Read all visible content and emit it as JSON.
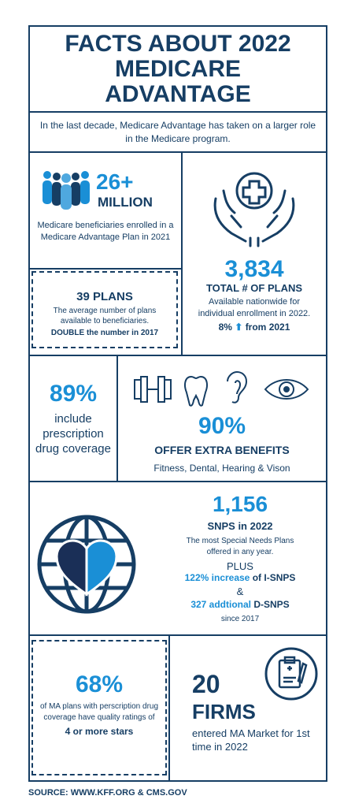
{
  "header": {
    "title_lines": [
      "FACTS ABOUT 2022",
      "MEDICARE",
      "ADVANTAGE"
    ]
  },
  "intro": "In the last decade, Medicare Advantage has taken on a larger role in the Medicare program.",
  "enrollment": {
    "value": "26+",
    "unit": "MILLION",
    "description": "Medicare beneficiaries enrolled in a Medicare Advantage Plan in 2021"
  },
  "average_plans": {
    "value": "39 PLANS",
    "description": "The average number of plans available to beneficiaries.",
    "note_bold": "DOUBLE",
    "note_rest": "the number in 2017"
  },
  "total_plans": {
    "value": "3,834",
    "label": "TOTAL # OF PLANS",
    "description": "Available nationwide for individual enrollment in 2022.",
    "change": "8%",
    "change_rest": "from 2021"
  },
  "prescription": {
    "value": "89%",
    "description": "include prescription drug coverage"
  },
  "extra_benefits": {
    "value": "90%",
    "label": "OFFER EXTRA BENEFITS",
    "description": "Fitness, Dental, Hearing & Vison"
  },
  "snps": {
    "value": "1,156",
    "label": "SNPS in 2022",
    "description": "The most Special Needs Plans offered in any year.",
    "plus": "PLUS",
    "isnp_bold": "122% increase",
    "isnp_rest": "of I-SNPS",
    "amp": "&",
    "dsnp_bold": "327 addtional",
    "dsnp_rest": "D-SNPS",
    "since": "since 2017"
  },
  "star_ratings": {
    "value": "68%",
    "description": "of MA plans with perscription drug coverage have quality ratings of",
    "note": "4 or more stars"
  },
  "firms": {
    "value": "20",
    "label": "FIRMS",
    "description": "entered MA Market for 1st time in 2022"
  },
  "source": "SOURCE: WWW.KFF.ORG & CMS.GOV"
}
